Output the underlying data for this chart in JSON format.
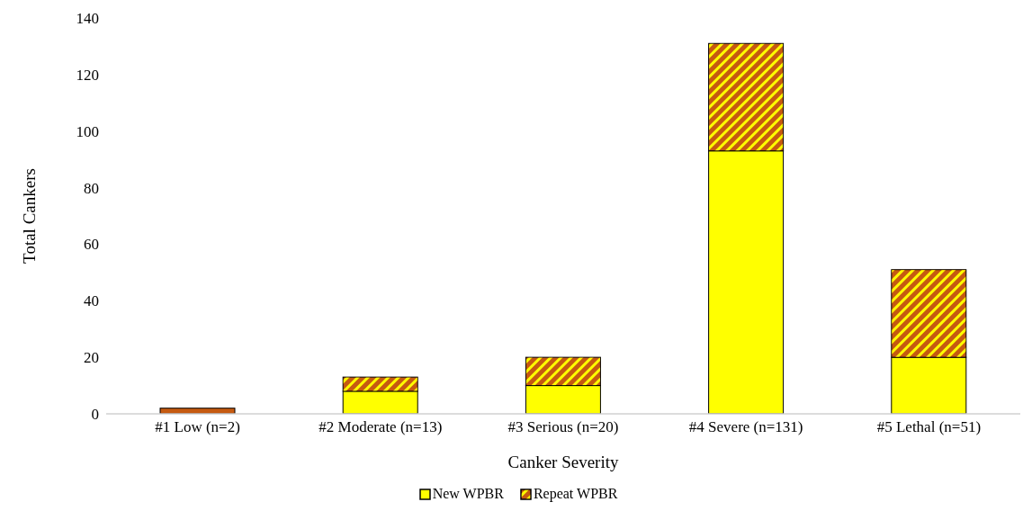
{
  "chart_data": {
    "type": "bar",
    "stacked": true,
    "xlabel": "Canker Severity",
    "ylabel": "Total Cankers",
    "categories": [
      "#1 Low (n=2)",
      "#2 Moderate (n=13)",
      "#3 Serious (n=20)",
      "#4 Severe (n=131)",
      "#5 Lethal (n=51)"
    ],
    "series": [
      {
        "name": "New WPBR",
        "color": "#ffff00",
        "values": [
          0,
          8,
          10,
          93,
          20
        ]
      },
      {
        "name": "Repeat WPBR",
        "color": "#c55a11",
        "values": [
          2,
          5,
          10,
          38,
          31
        ]
      }
    ],
    "ylim": [
      0,
      140
    ],
    "yticks": [
      0,
      20,
      40,
      60,
      80,
      100,
      120,
      140
    ],
    "grid": false,
    "legend": "bottom"
  }
}
